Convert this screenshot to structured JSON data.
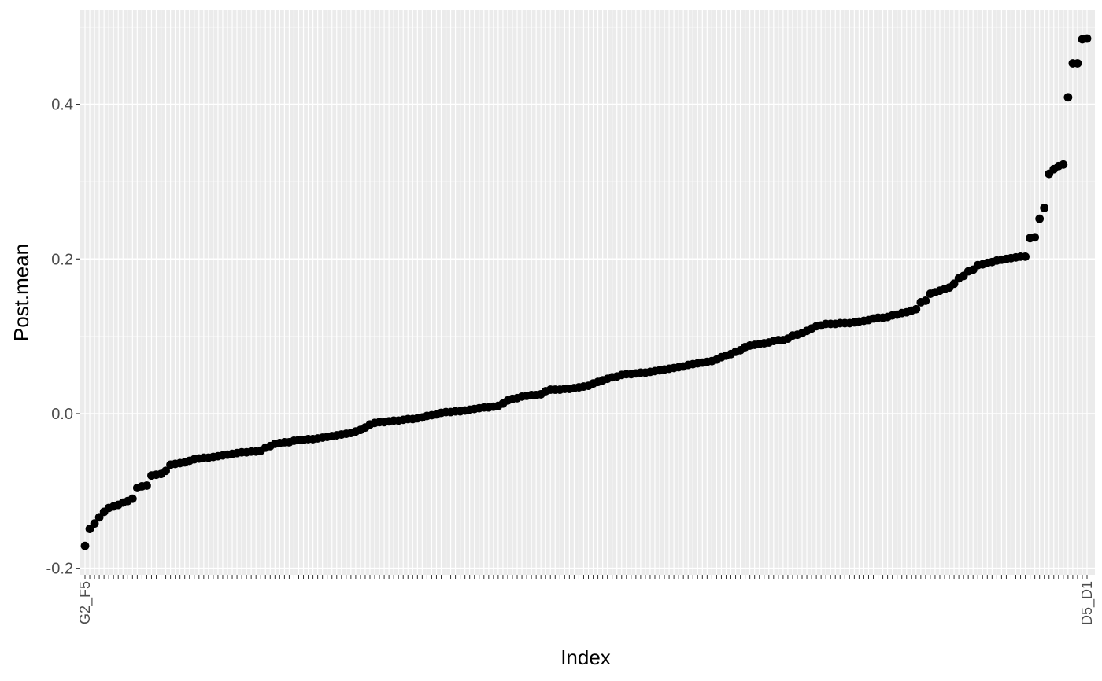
{
  "chart_data": {
    "type": "scatter",
    "title": "",
    "xlabel": "Index",
    "ylabel": "Post.mean",
    "ylim": [
      -0.2,
      0.5
    ],
    "y_ticks": [
      {
        "value": -0.2,
        "label": "-0.2"
      },
      {
        "value": 0.0,
        "label": "0.0"
      },
      {
        "value": 0.2,
        "label": "0.2"
      },
      {
        "value": 0.4,
        "label": "0.4"
      }
    ],
    "first_category_label": "G2_F5",
    "last_category_label": "D5_D1",
    "point_count": 212,
    "x_tick_labels_legible": false,
    "values": [
      -0.171,
      -0.149,
      -0.142,
      -0.134,
      -0.127,
      -0.122,
      -0.12,
      -0.118,
      -0.115,
      -0.113,
      -0.11,
      -0.096,
      -0.094,
      -0.093,
      -0.08,
      -0.079,
      -0.078,
      -0.074,
      -0.066,
      -0.065,
      -0.064,
      -0.063,
      -0.061,
      -0.059,
      -0.058,
      -0.057,
      -0.057,
      -0.056,
      -0.055,
      -0.054,
      -0.053,
      -0.052,
      -0.051,
      -0.05,
      -0.05,
      -0.049,
      -0.049,
      -0.048,
      -0.044,
      -0.042,
      -0.039,
      -0.038,
      -0.037,
      -0.037,
      -0.035,
      -0.034,
      -0.034,
      -0.033,
      -0.033,
      -0.032,
      -0.031,
      -0.03,
      -0.029,
      -0.028,
      -0.027,
      -0.026,
      -0.025,
      -0.023,
      -0.021,
      -0.018,
      -0.014,
      -0.012,
      -0.011,
      -0.011,
      -0.01,
      -0.009,
      -0.009,
      -0.008,
      -0.007,
      -0.007,
      -0.006,
      -0.005,
      -0.003,
      -0.002,
      -0.001,
      0.001,
      0.002,
      0.002,
      0.003,
      0.003,
      0.004,
      0.005,
      0.006,
      0.007,
      0.008,
      0.008,
      0.009,
      0.01,
      0.013,
      0.017,
      0.019,
      0.02,
      0.022,
      0.023,
      0.024,
      0.024,
      0.025,
      0.029,
      0.031,
      0.031,
      0.031,
      0.032,
      0.032,
      0.033,
      0.034,
      0.035,
      0.036,
      0.039,
      0.041,
      0.043,
      0.045,
      0.047,
      0.048,
      0.05,
      0.051,
      0.051,
      0.052,
      0.053,
      0.053,
      0.054,
      0.055,
      0.056,
      0.057,
      0.058,
      0.059,
      0.06,
      0.061,
      0.063,
      0.064,
      0.065,
      0.066,
      0.067,
      0.068,
      0.07,
      0.073,
      0.075,
      0.077,
      0.08,
      0.082,
      0.086,
      0.088,
      0.089,
      0.09,
      0.091,
      0.092,
      0.094,
      0.095,
      0.095,
      0.097,
      0.101,
      0.102,
      0.104,
      0.107,
      0.11,
      0.113,
      0.114,
      0.116,
      0.116,
      0.116,
      0.117,
      0.117,
      0.117,
      0.118,
      0.119,
      0.12,
      0.121,
      0.123,
      0.124,
      0.124,
      0.125,
      0.127,
      0.128,
      0.13,
      0.131,
      0.133,
      0.135,
      0.144,
      0.146,
      0.155,
      0.157,
      0.159,
      0.161,
      0.163,
      0.168,
      0.175,
      0.178,
      0.184,
      0.186,
      0.192,
      0.193,
      0.195,
      0.196,
      0.198,
      0.199,
      0.2,
      0.201,
      0.202,
      0.203,
      0.203,
      0.227,
      0.228,
      0.252,
      0.266,
      0.31,
      0.316,
      0.32,
      0.322,
      0.409,
      0.453,
      0.453,
      0.484,
      0.485
    ]
  },
  "colors": {
    "panel_background": "#ebebeb",
    "grid_major": "#ffffff",
    "point": "#000000",
    "tick_mark": "#333333",
    "tick_label": "#4d4d4d"
  }
}
